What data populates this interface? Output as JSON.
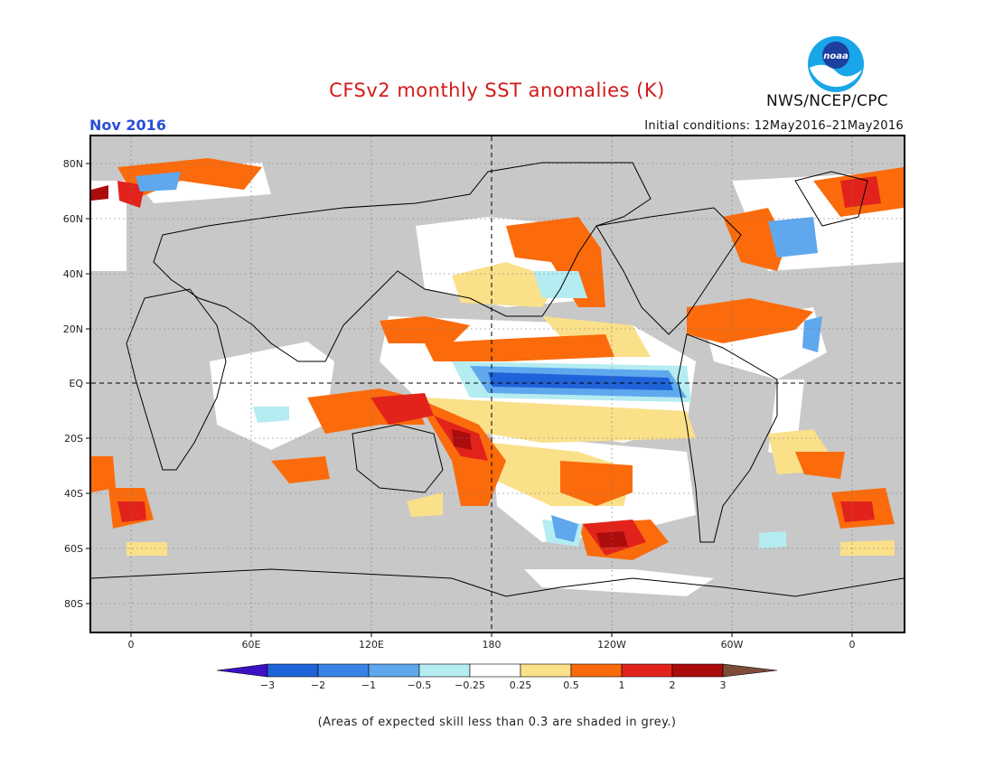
{
  "header": {
    "title": "CFSv2 monthly SST anomalies (K)",
    "month": "Nov 2016",
    "initial_conditions": "Initial conditions: 12May2016–21May2016",
    "agency": "NWS/NCEP/CPC",
    "logo_text": "noaa"
  },
  "map": {
    "lat_labels": [
      "80N",
      "60N",
      "40N",
      "20N",
      "EQ",
      "20S",
      "40S",
      "60S",
      "80S"
    ],
    "lon_labels": [
      "0",
      "60E",
      "120E",
      "180",
      "120W",
      "60W",
      "0"
    ],
    "reference_lines": [
      "EQ",
      "180"
    ]
  },
  "colorbar": {
    "levels": [
      "-3",
      "-2",
      "-1",
      "-0.5",
      "-0.25",
      "0.25",
      "0.5",
      "1",
      "2",
      "3"
    ],
    "colors": [
      "#3d10c4",
      "#1e63d8",
      "#3a83e6",
      "#5fa8ee",
      "#b4ecf2",
      "#ffffff",
      "#fbe08a",
      "#fb6b0c",
      "#e1231c",
      "#ab0d0d",
      "#7d4d3a"
    ],
    "skill_mask_color": "#c8c8c8"
  },
  "note": "(Areas of expected skill less than 0.3 are shaded in grey.)"
}
